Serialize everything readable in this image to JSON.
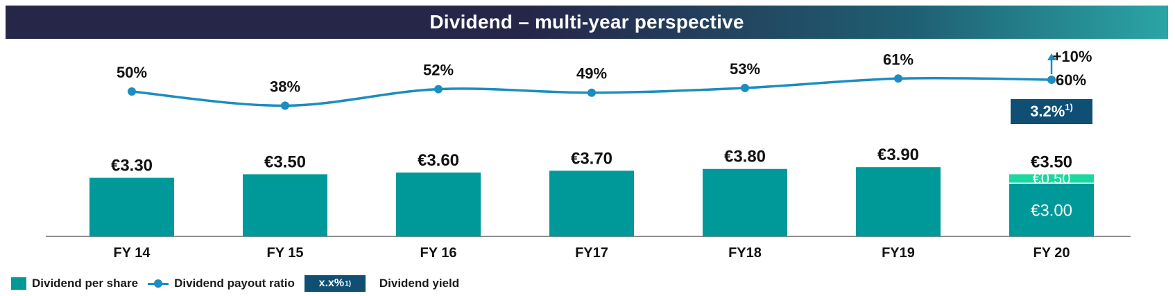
{
  "title": "Dividend – multi-year perspective",
  "chart_data": {
    "type": "bar",
    "categories": [
      "FY 14",
      "FY 15",
      "FY 16",
      "FY17",
      "FY18",
      "FY19",
      "FY 20"
    ],
    "series": [
      {
        "name": "Dividend per share",
        "values": [
          3.3,
          3.5,
          3.6,
          3.7,
          3.8,
          3.9,
          3.0
        ],
        "labels": [
          "€3.30",
          "€3.50",
          "€3.60",
          "€3.70",
          "€3.80",
          "€3.90",
          "€3.00"
        ]
      },
      {
        "name": "",
        "values": [
          null,
          null,
          null,
          null,
          null,
          null,
          0.5
        ],
        "labels": [
          "",
          "",
          "",
          "",
          "",
          "",
          "€0.50"
        ]
      },
      {
        "name": "Dividend payout ratio",
        "type": "line",
        "values": [
          50,
          38,
          52,
          49,
          53,
          61,
          60
        ],
        "labels": [
          "50%",
          "38%",
          "52%",
          "49%",
          "53%",
          "61%",
          "60%"
        ]
      }
    ],
    "totals": [
      "€3.30",
      "€3.50",
      "€3.60",
      "€3.70",
      "€3.80",
      "€3.90",
      "€3.50"
    ],
    "annotations": {
      "increase_label": "+10%",
      "yield_value": "3.2%",
      "yield_footnote": "1)"
    },
    "ylim_bars": [
      0,
      4
    ],
    "legend_position": "bottom-left",
    "colors": {
      "bar": "#009999",
      "bar_top": "#1cd8a0",
      "line": "#1b8dc0",
      "yield_box": "#0f4f74",
      "banner_left": "#262649",
      "banner_right": "#2aa5a5"
    }
  },
  "legend": {
    "bar_label": "Dividend per share",
    "line_label": "Dividend payout ratio",
    "yield_box_label": "x.x%",
    "yield_box_footnote": "1)",
    "yield_label": "Dividend yield"
  }
}
